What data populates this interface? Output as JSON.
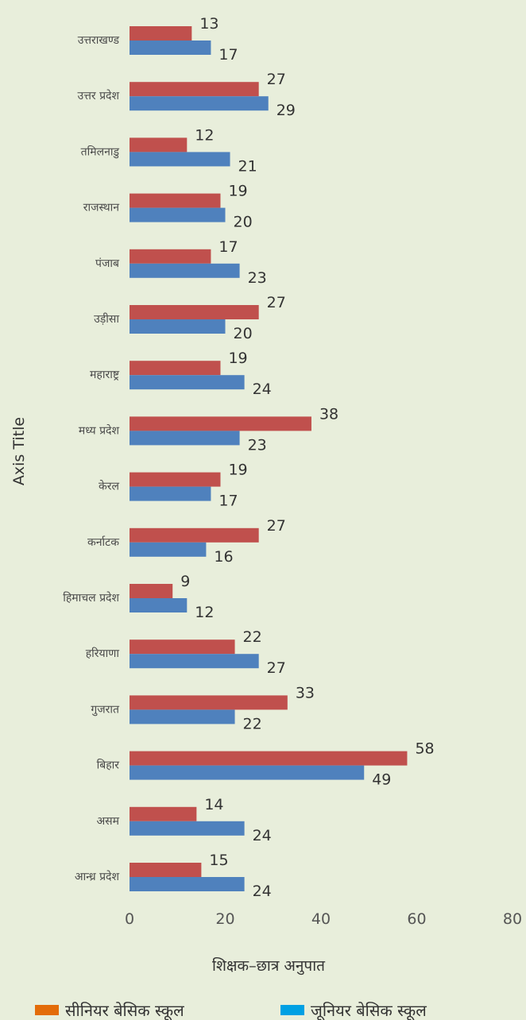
{
  "chart_data": {
    "type": "bar",
    "orientation": "horizontal",
    "categories": [
      "उत्तराखण्ड",
      "उत्तर प्रदेश",
      "तमिलनाडु",
      "राजस्थान",
      "पंजाब",
      "उड़ीसा",
      "महाराष्ट्र",
      "मध्य प्रदेश",
      "केरल",
      "कर्नाटक",
      "हिमाचल प्रदेश",
      "हरियाणा",
      "गुजरात",
      "बिहार",
      "असम",
      "आन्ध्र प्रदेश"
    ],
    "series": [
      {
        "name": "सीनियर बेसिक स्कूल",
        "color": "#c0504d",
        "values": [
          13,
          27,
          12,
          19,
          17,
          27,
          19,
          38,
          19,
          27,
          9,
          22,
          33,
          58,
          14,
          15
        ]
      },
      {
        "name": "जूनियर बेसिक स्कूल",
        "color": "#4f81bd",
        "values": [
          17,
          29,
          21,
          20,
          23,
          20,
          24,
          23,
          17,
          16,
          12,
          27,
          22,
          49,
          24,
          24
        ]
      }
    ],
    "xlim": [
      0,
      80
    ],
    "xticks": [
      "0",
      "20",
      "40",
      "60",
      "80"
    ],
    "xlabel": "शिक्षक–छात्र अनुपात",
    "ylabel": "Axis Title",
    "grid": false,
    "legend_position": "bottom",
    "legend_colors": [
      "#e36c09",
      "#00a0e3"
    ]
  }
}
